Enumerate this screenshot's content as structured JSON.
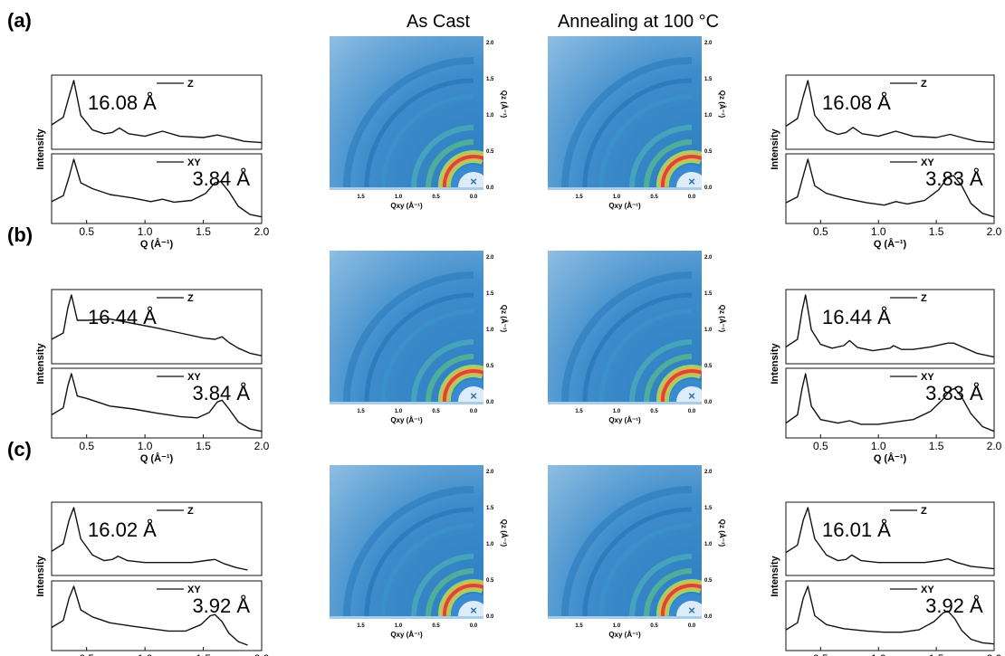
{
  "chart_data": {
    "type": "line",
    "column_titles": [
      "As Cast",
      "Annealing at 100 °C"
    ],
    "intensity_label": "Intensity",
    "q_axis_label": "Q (Å⁻¹)",
    "q_ticks": [
      "0.5",
      "1.0",
      "1.5",
      "2.0"
    ],
    "xlim": [
      0.2,
      2.0
    ],
    "giwaxs_x_label": "Qxy (Å⁻¹)",
    "giwaxs_y_label": "Qz (Å⁻¹)",
    "giwaxs_x_ticks": [
      "1.5",
      "1.0",
      "0.5",
      "0.0"
    ],
    "giwaxs_y_ticks": [
      "0.0",
      "0.5",
      "1.0",
      "1.5",
      "2.0"
    ],
    "rows": [
      {
        "label": "(a)",
        "left": {
          "z": {
            "legend": "Z",
            "d_spacing": "16.08 Å",
            "x": [
              0.2,
              0.3,
              0.35,
              0.39,
              0.45,
              0.55,
              0.65,
              0.72,
              0.78,
              0.86,
              1.0,
              1.15,
              1.3,
              1.5,
              1.62,
              1.72,
              1.85,
              2.0
            ],
            "y": [
              0.3,
              0.42,
              0.75,
              1.0,
              0.45,
              0.22,
              0.16,
              0.18,
              0.25,
              0.16,
              0.12,
              0.2,
              0.12,
              0.1,
              0.14,
              0.1,
              0.04,
              0.02
            ]
          },
          "xy": {
            "legend": "XY",
            "d_spacing": "3.84 Å",
            "x": [
              0.2,
              0.3,
              0.35,
              0.39,
              0.45,
              0.55,
              0.7,
              0.9,
              1.05,
              1.15,
              1.25,
              1.4,
              1.52,
              1.6,
              1.65,
              1.72,
              1.8,
              1.9,
              2.0
            ],
            "y": [
              0.28,
              0.38,
              0.7,
              1.0,
              0.6,
              0.5,
              0.4,
              0.34,
              0.28,
              0.32,
              0.27,
              0.3,
              0.42,
              0.6,
              0.62,
              0.45,
              0.2,
              0.06,
              0.02
            ]
          }
        },
        "right": {
          "z": {
            "legend": "Z",
            "d_spacing": "16.08 Å",
            "x": [
              0.2,
              0.3,
              0.35,
              0.39,
              0.45,
              0.55,
              0.65,
              0.72,
              0.78,
              0.86,
              1.0,
              1.15,
              1.3,
              1.5,
              1.62,
              1.72,
              1.85,
              2.0
            ],
            "y": [
              0.28,
              0.4,
              0.75,
              1.0,
              0.45,
              0.22,
              0.15,
              0.18,
              0.26,
              0.16,
              0.12,
              0.2,
              0.12,
              0.1,
              0.15,
              0.1,
              0.04,
              0.02
            ]
          },
          "xy": {
            "legend": "XY",
            "d_spacing": "3.83 Å",
            "x": [
              0.2,
              0.3,
              0.35,
              0.39,
              0.45,
              0.55,
              0.7,
              0.9,
              1.05,
              1.15,
              1.25,
              1.4,
              1.52,
              1.6,
              1.65,
              1.72,
              1.8,
              1.9,
              2.0
            ],
            "y": [
              0.26,
              0.36,
              0.72,
              1.0,
              0.55,
              0.42,
              0.34,
              0.26,
              0.22,
              0.28,
              0.24,
              0.3,
              0.48,
              0.7,
              0.72,
              0.55,
              0.25,
              0.08,
              0.02
            ]
          }
        }
      },
      {
        "label": "(b)",
        "left": {
          "z": {
            "legend": "Z",
            "d_spacing": "16.44 Å",
            "x": [
              0.2,
              0.3,
              0.34,
              0.37,
              0.42,
              0.5,
              0.7,
              0.9,
              1.1,
              1.3,
              1.5,
              1.6,
              1.66,
              1.72,
              1.8,
              1.9,
              2.0
            ],
            "y": [
              0.3,
              0.4,
              0.8,
              1.0,
              0.6,
              0.6,
              0.62,
              0.55,
              0.48,
              0.4,
              0.32,
              0.3,
              0.34,
              0.25,
              0.16,
              0.08,
              0.04
            ]
          },
          "xy": {
            "legend": "XY",
            "d_spacing": "3.84 Å",
            "x": [
              0.2,
              0.3,
              0.34,
              0.37,
              0.42,
              0.5,
              0.7,
              0.9,
              1.1,
              1.3,
              1.45,
              1.55,
              1.62,
              1.66,
              1.72,
              1.8,
              1.9,
              2.0
            ],
            "y": [
              0.3,
              0.42,
              0.8,
              1.0,
              0.62,
              0.58,
              0.45,
              0.4,
              0.33,
              0.27,
              0.25,
              0.34,
              0.52,
              0.55,
              0.4,
              0.18,
              0.06,
              0.02
            ]
          }
        },
        "right": {
          "z": {
            "legend": "Z",
            "d_spacing": "16.44 Å",
            "x": [
              0.2,
              0.3,
              0.34,
              0.37,
              0.42,
              0.5,
              0.6,
              0.7,
              0.75,
              0.82,
              0.95,
              1.1,
              1.13,
              1.2,
              1.3,
              1.45,
              1.6,
              1.65,
              1.75,
              1.85,
              2.0
            ],
            "y": [
              0.18,
              0.3,
              0.75,
              1.0,
              0.45,
              0.22,
              0.16,
              0.2,
              0.28,
              0.17,
              0.12,
              0.16,
              0.2,
              0.14,
              0.14,
              0.18,
              0.24,
              0.24,
              0.16,
              0.08,
              0.02
            ]
          },
          "xy": {
            "legend": "XY",
            "d_spacing": "3.83 Å",
            "x": [
              0.2,
              0.3,
              0.34,
              0.37,
              0.42,
              0.5,
              0.65,
              0.75,
              0.85,
              1.0,
              1.15,
              1.3,
              1.45,
              1.55,
              1.62,
              1.66,
              1.72,
              1.8,
              1.9,
              2.0
            ],
            "y": [
              0.16,
              0.3,
              0.75,
              1.0,
              0.45,
              0.22,
              0.16,
              0.2,
              0.14,
              0.14,
              0.18,
              0.22,
              0.36,
              0.55,
              0.72,
              0.75,
              0.6,
              0.32,
              0.1,
              0.02
            ]
          }
        }
      },
      {
        "label": "(c)",
        "left": {
          "z": {
            "legend": "Z",
            "d_spacing": "16.02 Å",
            "x": [
              0.2,
              0.3,
              0.35,
              0.39,
              0.45,
              0.55,
              0.65,
              0.72,
              0.77,
              0.85,
              1.0,
              1.2,
              1.4,
              1.55,
              1.6,
              1.68,
              1.78,
              1.88
            ],
            "y": [
              0.3,
              0.42,
              0.8,
              1.0,
              0.5,
              0.24,
              0.15,
              0.17,
              0.22,
              0.15,
              0.12,
              0.12,
              0.12,
              0.16,
              0.17,
              0.1,
              0.04,
              0.0
            ]
          },
          "xy": {
            "legend": "XY",
            "d_spacing": "3.92 Å",
            "x": [
              0.2,
              0.3,
              0.35,
              0.39,
              0.45,
              0.55,
              0.7,
              0.9,
              1.05,
              1.2,
              1.35,
              1.48,
              1.56,
              1.6,
              1.66,
              1.72,
              1.8,
              1.88
            ],
            "y": [
              0.3,
              0.42,
              0.8,
              1.0,
              0.6,
              0.48,
              0.38,
              0.32,
              0.28,
              0.24,
              0.24,
              0.35,
              0.5,
              0.52,
              0.4,
              0.2,
              0.06,
              0.0
            ]
          }
        },
        "right": {
          "z": {
            "legend": "Z",
            "d_spacing": "16.01 Å",
            "x": [
              0.2,
              0.3,
              0.35,
              0.39,
              0.45,
              0.55,
              0.65,
              0.72,
              0.77,
              0.85,
              1.0,
              1.2,
              1.4,
              1.55,
              1.6,
              1.68,
              1.8,
              2.0
            ],
            "y": [
              0.28,
              0.4,
              0.8,
              1.0,
              0.5,
              0.24,
              0.15,
              0.17,
              0.24,
              0.15,
              0.12,
              0.12,
              0.12,
              0.16,
              0.18,
              0.12,
              0.06,
              0.02
            ]
          },
          "xy": {
            "legend": "XY",
            "d_spacing": "3.92 Å",
            "x": [
              0.2,
              0.3,
              0.35,
              0.39,
              0.45,
              0.55,
              0.7,
              0.9,
              1.05,
              1.2,
              1.35,
              1.48,
              1.56,
              1.6,
              1.66,
              1.72,
              1.8,
              1.9,
              2.0
            ],
            "y": [
              0.26,
              0.38,
              0.8,
              1.0,
              0.5,
              0.35,
              0.28,
              0.24,
              0.22,
              0.22,
              0.26,
              0.4,
              0.55,
              0.58,
              0.45,
              0.25,
              0.1,
              0.04,
              0.02
            ]
          }
        }
      }
    ]
  }
}
